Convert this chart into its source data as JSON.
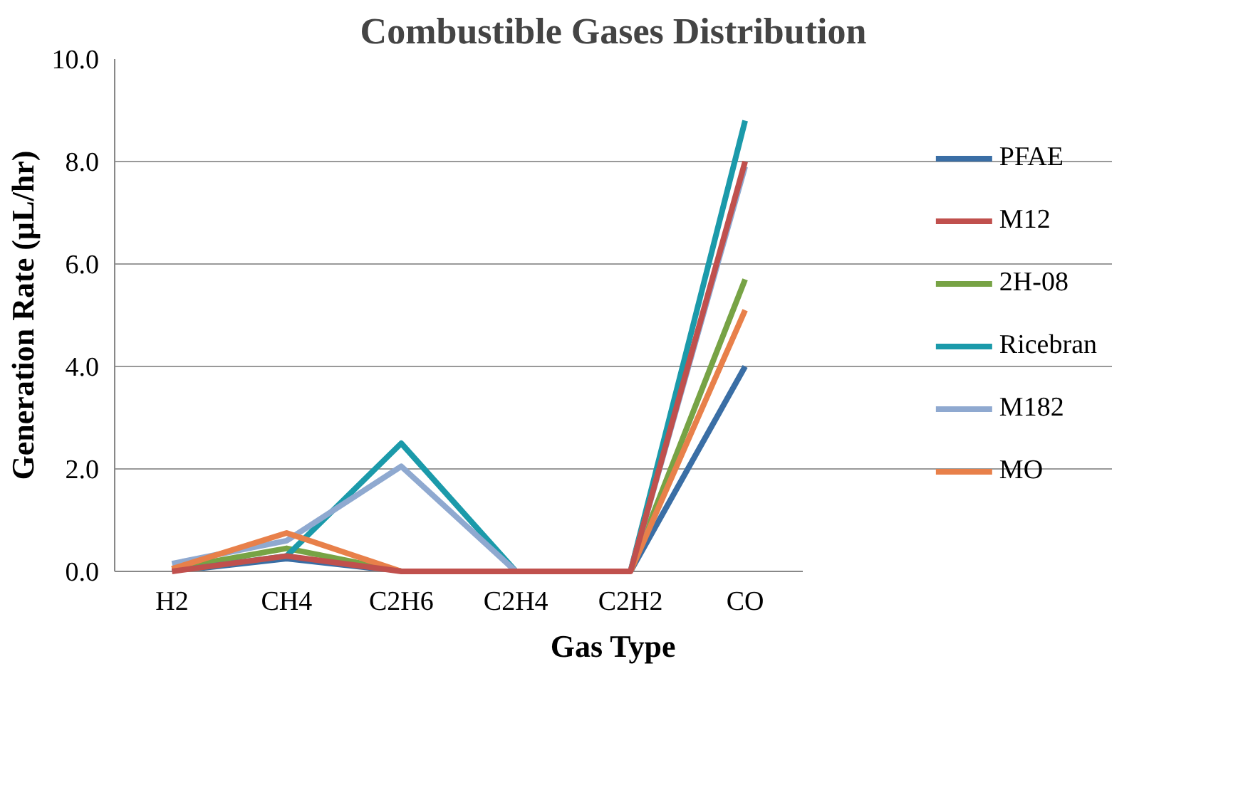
{
  "chart_data": {
    "type": "line",
    "title": "Combustible Gases Distribution",
    "xlabel": "Gas Type",
    "ylabel": "Generation Rate (µL/hr)",
    "categories": [
      "H2",
      "CH4",
      "C2H6",
      "C2H4",
      "C2H2",
      "CO"
    ],
    "series": [
      {
        "name": "PFAE",
        "color": "#3a6ea5",
        "values": [
          0.0,
          0.25,
          0.0,
          0.0,
          0.0,
          4.0
        ]
      },
      {
        "name": "M12",
        "color": "#c0504d",
        "values": [
          0.0,
          0.3,
          0.0,
          0.0,
          0.0,
          8.0
        ]
      },
      {
        "name": "2H-08",
        "color": "#77a345",
        "values": [
          0.05,
          0.45,
          0.0,
          0.0,
          0.0,
          5.7
        ]
      },
      {
        "name": "Ricebran",
        "color": "#1b9aaa",
        "values": [
          0.0,
          0.3,
          2.5,
          0.0,
          0.0,
          8.8
        ]
      },
      {
        "name": "M182",
        "color": "#8fa9d0",
        "values": [
          0.15,
          0.6,
          2.05,
          0.0,
          0.0,
          7.9
        ]
      },
      {
        "name": "MO",
        "color": "#e8804a",
        "values": [
          0.05,
          0.75,
          0.0,
          0.0,
          0.0,
          5.1
        ]
      }
    ],
    "ylim": [
      0,
      10
    ],
    "yticks": [
      {
        "value": 0,
        "label": "0.0"
      },
      {
        "value": 2,
        "label": "2.0"
      },
      {
        "value": 4,
        "label": "4.0"
      },
      {
        "value": 6,
        "label": "6.0"
      },
      {
        "value": 8,
        "label": "8.0"
      },
      {
        "value": 10,
        "label": "10.0"
      }
    ],
    "grid": "y",
    "legend": "right"
  }
}
